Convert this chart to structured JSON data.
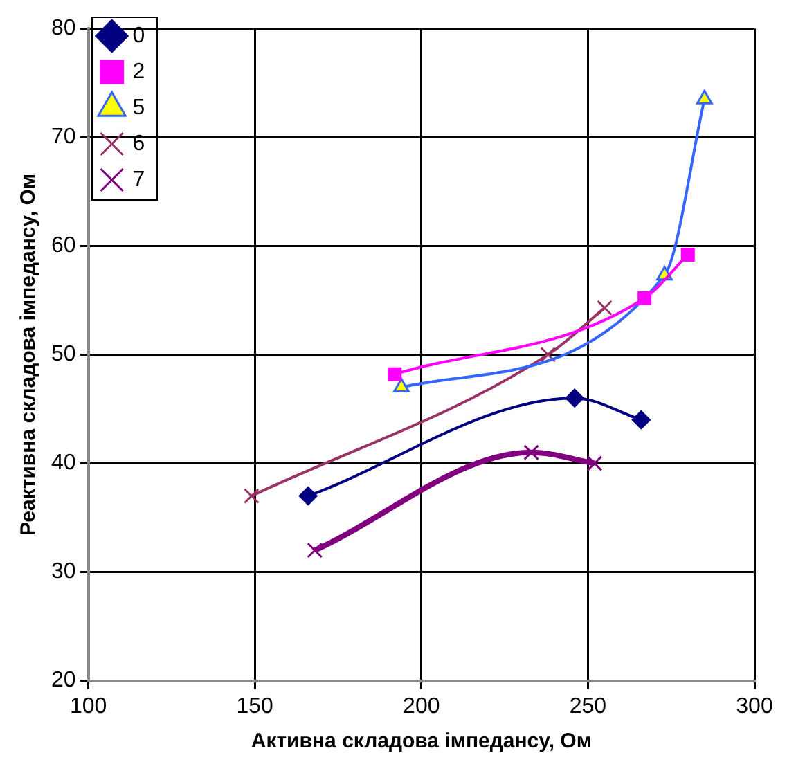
{
  "chart_data": {
    "type": "line",
    "xlabel": "Активна складова імпедансу, Ом",
    "ylabel": "Реактивна складова імпедансу, Ом",
    "xlim": [
      100,
      300
    ],
    "xticks": [
      100,
      150,
      200,
      250,
      300
    ],
    "ylim": [
      20,
      80
    ],
    "yticks": [
      20,
      30,
      40,
      50,
      60,
      70,
      80
    ],
    "grid": true,
    "legend": "top left",
    "series": [
      {
        "name": "0",
        "color": "#000080",
        "marker": "diamond",
        "x": [
          166,
          246,
          266
        ],
        "values": [
          37,
          46,
          44
        ]
      },
      {
        "name": "2",
        "color": "#ff00ff",
        "marker": "square",
        "x": [
          192,
          267,
          280
        ],
        "values": [
          48.2,
          55.2,
          59.2
        ]
      },
      {
        "name": "5",
        "color": "#3366ff",
        "marker": "triangle",
        "x": [
          194,
          273,
          285
        ],
        "values": [
          47,
          57.3,
          73.5
        ]
      },
      {
        "name": "6",
        "color": "#993366",
        "marker": "cross",
        "x": [
          149,
          238,
          255
        ],
        "values": [
          37,
          50,
          54.3
        ]
      },
      {
        "name": "7",
        "color": "#800080",
        "marker": "cross",
        "x": [
          168,
          233,
          252
        ],
        "values": [
          32,
          41,
          40
        ]
      }
    ]
  }
}
